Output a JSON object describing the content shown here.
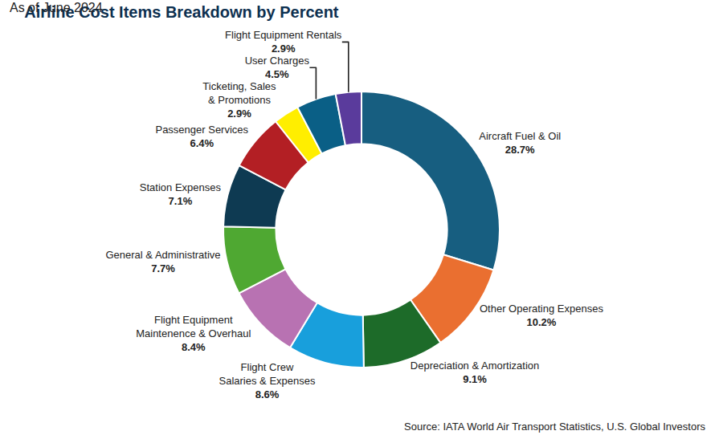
{
  "chart_data": {
    "type": "pie",
    "title": "Airline Cost Items Breakdown by Percent",
    "subtitle": "As of June 2024",
    "source": "Source: IATA World Air Transport Statistics, U.S. Global Investors",
    "categories": [
      "Aircraft Fuel & Oil",
      "Other Operating Expenses",
      "Depreciation & Amortization",
      "Flight Crew\nSalaries & Expenses",
      "Flight Equipment\nMaintenence & Overhaul",
      "General & Administrative",
      "Station Expenses",
      "Passenger Services",
      "Ticketing, Sales\n& Promotions",
      "User Charges",
      "Flight Equipment Rentals"
    ],
    "values": [
      28.7,
      10.2,
      9.1,
      8.6,
      8.4,
      7.7,
      7.1,
      6.4,
      2.9,
      4.5,
      2.9
    ],
    "value_labels": [
      "28.7%",
      "10.2%",
      "9.1%",
      "8.6%",
      "8.4%",
      "7.7%",
      "7.1%",
      "6.4%",
      "2.9%",
      "4.5%",
      "2.9%"
    ],
    "colors": [
      "#175e80",
      "#ea6f30",
      "#1d6b29",
      "#189fdc",
      "#b872b2",
      "#4fa832",
      "#0e3a52",
      "#b31f24",
      "#ffee00",
      "#0a5f86",
      "#5a3b9c"
    ],
    "data_labels": true
  }
}
